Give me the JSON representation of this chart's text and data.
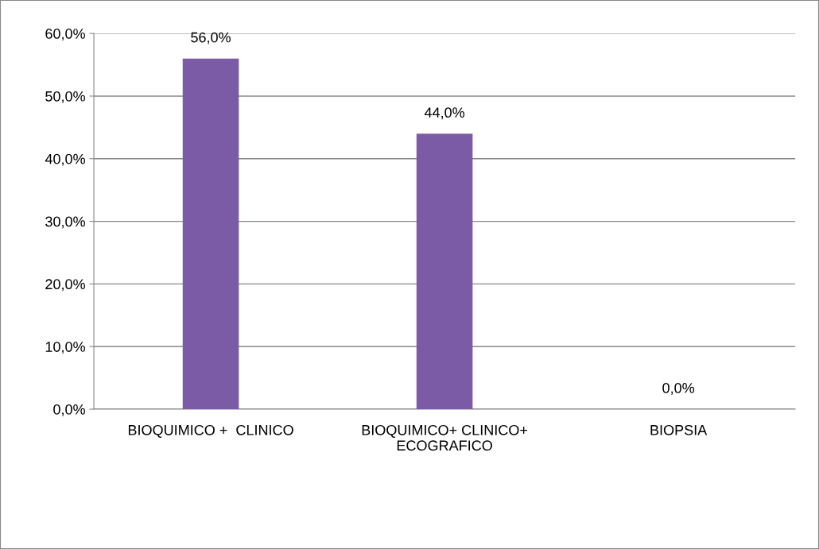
{
  "chart_data": {
    "type": "bar",
    "categories": [
      "BIOQUIMICO +  CLINICO",
      "BIOQUIMICO+ CLINICO+\nECOGRAFICO",
      "BIOPSIA"
    ],
    "values": [
      56.0,
      44.0,
      0.0
    ],
    "value_labels": [
      "56,0%",
      "44,0%",
      "0,0%"
    ],
    "color": "#7b5aa6",
    "ylim": [
      0,
      60
    ],
    "yticks": [
      {
        "value": 0,
        "label": "0,0%"
      },
      {
        "value": 10,
        "label": "10,0%"
      },
      {
        "value": 20,
        "label": "20,0%"
      },
      {
        "value": 30,
        "label": "30,0%"
      },
      {
        "value": 40,
        "label": "40,0%"
      },
      {
        "value": 50,
        "label": "50,0%"
      },
      {
        "value": 60,
        "label": "60,0%"
      }
    ],
    "grid": "y"
  }
}
